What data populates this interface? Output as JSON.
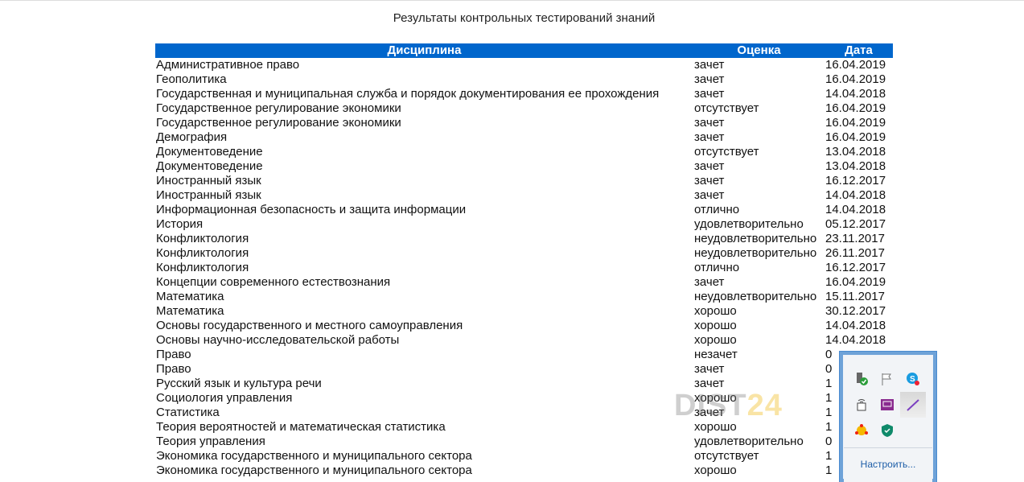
{
  "title": "Результаты контрольных тестирований знаний",
  "table": {
    "headers": [
      "Дисциплина",
      "Оценка",
      "Дата"
    ],
    "rows": [
      [
        "Административное право",
        "зачет",
        "16.04.2019"
      ],
      [
        "Геополитика",
        "зачет",
        "16.04.2019"
      ],
      [
        "Государственная и муниципальная служба и порядок документирования ее прохождения",
        "зачет",
        "14.04.2018"
      ],
      [
        "Государственное регулирование экономики",
        "отсутствует",
        "16.04.2019"
      ],
      [
        "Государственное регулирование экономики",
        "зачет",
        "16.04.2019"
      ],
      [
        "Демография",
        "зачет",
        "16.04.2019"
      ],
      [
        "Документоведение",
        "отсутствует",
        "13.04.2018"
      ],
      [
        "Документоведение",
        "зачет",
        "13.04.2018"
      ],
      [
        "Иностранный язык",
        "зачет",
        "16.12.2017"
      ],
      [
        "Иностранный язык",
        "зачет",
        "14.04.2018"
      ],
      [
        "Информационная безопасность и защита информации",
        "отлично",
        "14.04.2018"
      ],
      [
        "История",
        "удовлетворительно",
        "05.12.2017"
      ],
      [
        "Конфликтология",
        "неудовлетворительно",
        "23.11.2017"
      ],
      [
        "Конфликтология",
        "неудовлетворительно",
        "26.11.2017"
      ],
      [
        "Конфликтология",
        "отлично",
        "16.12.2017"
      ],
      [
        "Концепции современного естествознания",
        "зачет",
        "16.04.2019"
      ],
      [
        "Математика",
        "неудовлетворительно",
        "15.11.2017"
      ],
      [
        "Математика",
        "хорошо",
        "30.12.2017"
      ],
      [
        "Основы государственного и местного самоуправления",
        "хорошо",
        "14.04.2018"
      ],
      [
        "Основы научно-исследовательской работы",
        "хорошо",
        "14.04.2018"
      ],
      [
        "Право",
        "незачет",
        "0"
      ],
      [
        "Право",
        "зачет",
        "0"
      ],
      [
        "Русский язык и культура речи",
        "зачет",
        "1"
      ],
      [
        "Социология управления",
        "хорошо",
        "1"
      ],
      [
        "Статистика",
        "зачет",
        "1"
      ],
      [
        "Теория вероятностей и математическая статистика",
        "хорошо",
        "1"
      ],
      [
        "Теория управления",
        "удовлетворительно",
        "0"
      ],
      [
        "Экономика государственного и муниципального сектора",
        "отсутствует",
        "1"
      ],
      [
        "Экономика государственного и муниципального сектора",
        "хорошо",
        "1"
      ]
    ]
  },
  "watermark": {
    "part1": "DIST",
    "part2": "24"
  },
  "tray": {
    "configure_label": "Настроить...",
    "icons": [
      "usb-safe-remove-icon",
      "action-center-flag-icon",
      "skype-icon",
      "network-icon",
      "presentation-icon",
      "pen-icon",
      "flower-app-icon",
      "security-shield-icon"
    ]
  },
  "colors": {
    "header": "#0066cc",
    "link": "#1e5ea8"
  }
}
